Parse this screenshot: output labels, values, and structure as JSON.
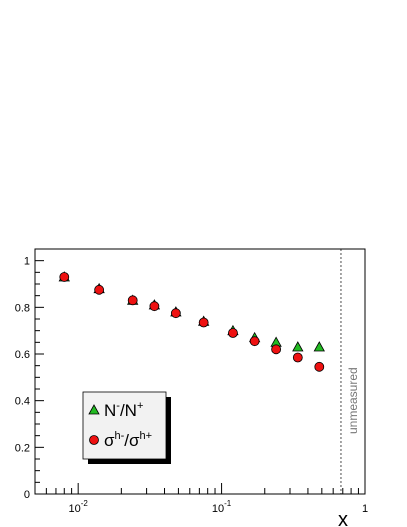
{
  "chart_data": {
    "type": "scatter",
    "title": "",
    "xlabel": "x",
    "ylabel": "",
    "xscale": "log",
    "xlim": [
      0.005,
      1
    ],
    "ylim": [
      0,
      1.05
    ],
    "x_ticks": [
      {
        "value": 0.01,
        "base": "10",
        "exp": "-2"
      },
      {
        "value": 0.1,
        "base": "10",
        "exp": "-1"
      },
      {
        "value": 1,
        "label": "1"
      }
    ],
    "y_ticks": [
      {
        "value": 0,
        "label": "0"
      },
      {
        "value": 0.2,
        "label": "0.2"
      },
      {
        "value": 0.4,
        "label": "0.4"
      },
      {
        "value": 0.6,
        "label": "0.6"
      },
      {
        "value": 0.8,
        "label": "0.8"
      },
      {
        "value": 1,
        "label": "1"
      }
    ],
    "grid": false,
    "legend_position": "bottom-left",
    "series": [
      {
        "key": "n-ratio",
        "marker": "triangle",
        "color": "#22bb22",
        "x": [
          0.008,
          0.014,
          0.024,
          0.034,
          0.048,
          0.075,
          0.12,
          0.17,
          0.24,
          0.34,
          0.48
        ],
        "y": [
          0.93,
          0.88,
          0.83,
          0.81,
          0.78,
          0.74,
          0.7,
          0.67,
          0.65,
          0.63,
          0.63
        ]
      },
      {
        "key": "sigma-ratio",
        "marker": "circle",
        "color": "#ee1111",
        "x": [
          0.008,
          0.014,
          0.024,
          0.034,
          0.048,
          0.075,
          0.12,
          0.17,
          0.24,
          0.34,
          0.48
        ],
        "y": [
          0.93,
          0.875,
          0.83,
          0.805,
          0.775,
          0.735,
          0.69,
          0.655,
          0.62,
          0.585,
          0.545
        ]
      }
    ],
    "legend": {
      "entries": [
        {
          "marker": "triangle",
          "parts": [
            {
              "t": "N"
            },
            {
              "sup": "-"
            },
            {
              "t": "/N"
            },
            {
              "sup": "+"
            }
          ]
        },
        {
          "marker": "circle",
          "parts": [
            {
              "t": "σ"
            },
            {
              "sup": "h-"
            },
            {
              "t": "/σ"
            },
            {
              "sup": "h+"
            }
          ]
        }
      ]
    },
    "annotations": [
      {
        "text": "unmeasured",
        "x": 0.68,
        "line": "dashed",
        "orientation": "vertical"
      }
    ]
  }
}
